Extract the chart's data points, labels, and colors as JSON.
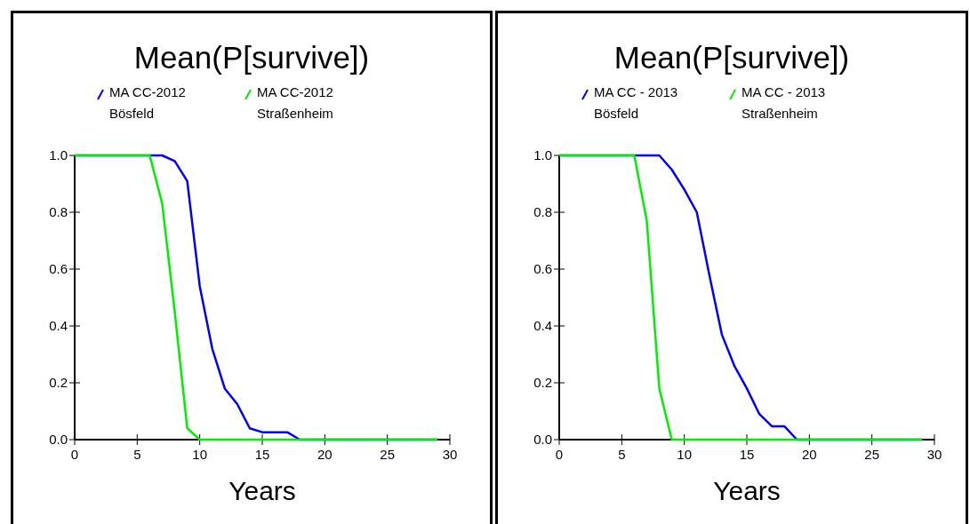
{
  "chart_data": [
    {
      "type": "line",
      "title": "Mean(P[survive])",
      "xlabel": "Years",
      "xlim": [
        0,
        30
      ],
      "xticks": [
        0,
        5,
        10,
        15,
        20,
        25,
        30
      ],
      "ylim": [
        0,
        1
      ],
      "yticks": [
        {
          "value": 0,
          "label": "0.0"
        },
        {
          "value": 0.2,
          "label": "0.2"
        },
        {
          "value": 0.4,
          "label": "0.4"
        },
        {
          "value": 0.6,
          "label": "0.6"
        },
        {
          "value": 0.8,
          "label": "0.8"
        },
        {
          "value": 1,
          "label": "1.0"
        }
      ],
      "legend": "top",
      "grid": false,
      "x": [
        0,
        6,
        7,
        8,
        9,
        10,
        11,
        12,
        13,
        14,
        15,
        16,
        17,
        18,
        29
      ],
      "series": [
        {
          "name": "MA CC-2012 Bösfeld",
          "color": "#0000ff",
          "values": [
            1,
            1,
            1,
            0.98,
            0.91,
            0.54,
            0.32,
            0.18,
            0.125,
            0.04,
            0.026,
            0.026,
            0.026,
            0,
            0
          ]
        },
        {
          "name": "MA CC-2012 Straßenheim",
          "color": "#00ee00",
          "values": [
            1,
            1,
            0.83,
            0.45,
            0.04,
            0,
            0,
            0,
            0,
            0,
            0,
            0,
            0,
            0,
            0
          ]
        }
      ]
    },
    {
      "type": "line",
      "title": "Mean(P[survive])",
      "xlabel": "Years",
      "xlim": [
        0,
        30
      ],
      "xticks": [
        0,
        5,
        10,
        15,
        20,
        25,
        30
      ],
      "ylim": [
        0,
        1
      ],
      "yticks": [
        {
          "value": 0,
          "label": "0.0"
        },
        {
          "value": 0.2,
          "label": "0.2"
        },
        {
          "value": 0.4,
          "label": "0.4"
        },
        {
          "value": 0.6,
          "label": "0.6"
        },
        {
          "value": 0.8,
          "label": "0.8"
        },
        {
          "value": 1,
          "label": "1.0"
        }
      ],
      "legend": "top",
      "grid": false,
      "x": [
        0,
        6,
        7,
        8,
        9,
        10,
        11,
        12,
        13,
        14,
        15,
        16,
        17,
        18,
        19,
        29
      ],
      "series": [
        {
          "name": "MA CC - 2013 Bösfeld",
          "color": "#0000ff",
          "values": [
            1,
            1,
            1,
            1,
            0.95,
            0.88,
            0.8,
            0.58,
            0.37,
            0.26,
            0.18,
            0.09,
            0.047,
            0.047,
            0,
            0
          ]
        },
        {
          "name": "MA CC - 2013 Straßenheim",
          "color": "#00ee00",
          "values": [
            1,
            1,
            0.77,
            0.18,
            0,
            0,
            0,
            0,
            0,
            0,
            0,
            0,
            0,
            0,
            0,
            0
          ]
        }
      ]
    }
  ]
}
